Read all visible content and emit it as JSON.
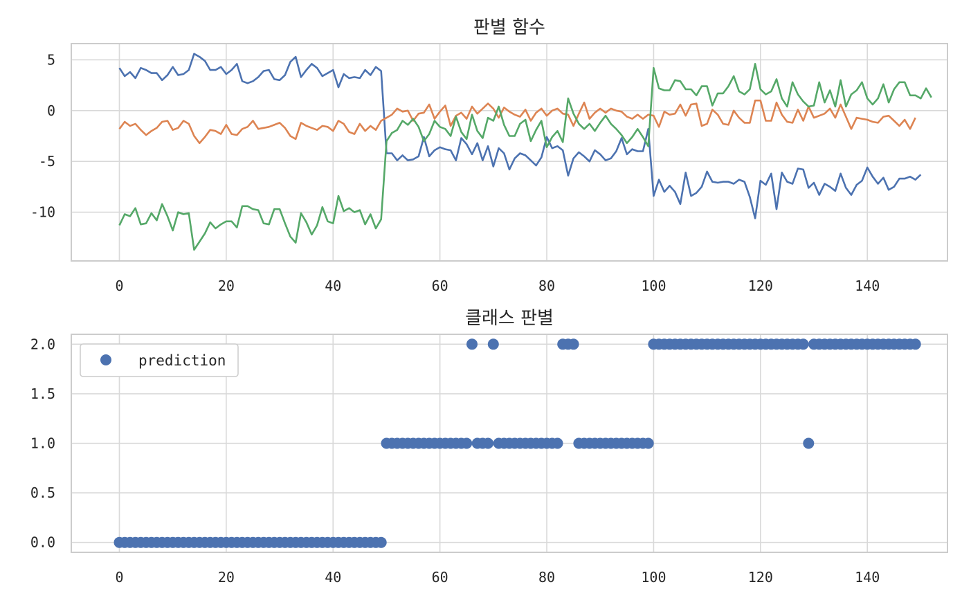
{
  "chart_data": [
    {
      "type": "line",
      "title": "판별 함수",
      "xlim": [
        -9,
        155
      ],
      "ylim": [
        -14.8,
        6.6
      ],
      "xticks": [
        0,
        20,
        40,
        60,
        80,
        100,
        120,
        140
      ],
      "yticks": [
        5,
        0,
        -5,
        -10
      ],
      "grid": true,
      "colors": [
        "#4c72b0",
        "#dd8452",
        "#55a868"
      ],
      "series": [
        {
          "color": "#4c72b0",
          "x_start": 0,
          "values": [
            4.2,
            3.4,
            3.8,
            3.2,
            4.2,
            4.0,
            3.7,
            3.7,
            3.0,
            3.5,
            4.3,
            3.5,
            3.6,
            4.0,
            5.6,
            5.3,
            4.9,
            4.0,
            4.0,
            4.3,
            3.6,
            4.0,
            4.6,
            2.9,
            2.7,
            2.9,
            3.3,
            3.9,
            4.0,
            3.1,
            3.0,
            3.5,
            4.8,
            5.3,
            3.3,
            4.0,
            4.6,
            4.2,
            3.4,
            3.7,
            4.0,
            2.3,
            3.6,
            3.2,
            3.3,
            3.2,
            4.0,
            3.5,
            4.3,
            3.9,
            -4.2,
            -4.2,
            -4.9,
            -4.4,
            -4.9,
            -4.8,
            -4.5,
            -2.6,
            -4.5,
            -3.9,
            -3.6,
            -3.8,
            -3.9,
            -4.9,
            -2.7,
            -3.3,
            -4.3,
            -3.2,
            -4.9,
            -3.5,
            -5.5,
            -3.7,
            -4.2,
            -5.8,
            -4.7,
            -4.2,
            -4.4,
            -4.9,
            -5.4,
            -4.6,
            -2.6,
            -3.7,
            -3.5,
            -3.9,
            -6.4,
            -4.7,
            -4.1,
            -4.5,
            -5.0,
            -3.9,
            -4.3,
            -4.9,
            -4.7,
            -4.0,
            -2.7,
            -4.3,
            -3.8,
            -4.0,
            -4.0,
            -1.8,
            -8.4,
            -6.8,
            -8.0,
            -7.4,
            -8.0,
            -9.2,
            -6.1,
            -8.4,
            -8.1,
            -7.5,
            -6.0,
            -7.0,
            -7.1,
            -7.0,
            -7.0,
            -7.2,
            -6.8,
            -7.0,
            -8.5,
            -10.6,
            -6.9,
            -7.3,
            -6.2,
            -9.7,
            -6.1,
            -7.0,
            -7.2,
            -5.7,
            -5.8,
            -7.6,
            -7.1,
            -8.3,
            -7.2,
            -7.5,
            -7.9,
            -6.2,
            -7.6,
            -8.3,
            -7.3,
            -6.9,
            -5.6,
            -6.5,
            -7.2,
            -6.6,
            -7.8,
            -7.5,
            -6.7,
            -6.7,
            -6.5,
            -6.8,
            -6.3
          ]
        },
        {
          "color": "#dd8452",
          "x_start": 0,
          "values": [
            -1.8,
            -1.1,
            -1.5,
            -1.3,
            -1.9,
            -2.4,
            -2.0,
            -1.7,
            -1.1,
            -1.0,
            -1.9,
            -1.7,
            -1.0,
            -1.3,
            -2.5,
            -3.2,
            -2.6,
            -1.9,
            -2.0,
            -2.3,
            -1.4,
            -2.3,
            -2.4,
            -1.8,
            -1.6,
            -1.0,
            -1.8,
            -1.7,
            -1.6,
            -1.4,
            -1.2,
            -1.7,
            -2.5,
            -2.8,
            -1.2,
            -1.5,
            -1.7,
            -1.9,
            -1.5,
            -1.6,
            -2.0,
            -1.0,
            -1.3,
            -2.1,
            -2.3,
            -1.3,
            -2.0,
            -1.5,
            -1.9,
            -1.0,
            -0.7,
            -0.4,
            0.2,
            -0.1,
            0.0,
            -1.0,
            -0.3,
            -0.2,
            0.6,
            -0.8,
            -0.1,
            0.5,
            -1.5,
            -0.5,
            -0.2,
            -0.8,
            0.4,
            -0.3,
            0.2,
            0.7,
            0.2,
            -0.7,
            0.3,
            -0.1,
            -0.4,
            -0.6,
            0.1,
            -1.0,
            -0.2,
            0.2,
            -0.5,
            0.0,
            0.2,
            -0.3,
            -0.4,
            -1.5,
            -0.3,
            0.8,
            -0.8,
            -0.2,
            0.2,
            -0.2,
            0.2,
            0.0,
            -0.1,
            -0.6,
            -0.8,
            -0.4,
            -0.8,
            -0.4,
            -0.5,
            -1.6,
            -0.1,
            -0.4,
            -0.3,
            0.6,
            -0.5,
            0.6,
            0.7,
            -1.5,
            -1.3,
            0.1,
            -0.4,
            -1.3,
            -1.4,
            0.0,
            -0.7,
            -1.2,
            -1.2,
            1.0,
            1.0,
            -1.0,
            -1.0,
            0.8,
            -0.4,
            -1.1,
            -1.2,
            0.1,
            -1.0,
            0.4,
            -0.7,
            -0.5,
            -0.3,
            0.2,
            -0.7,
            0.6,
            -0.6,
            -1.8,
            -0.7,
            -0.8,
            -0.9,
            -1.1,
            -1.2,
            -0.6,
            -0.5,
            -1.0,
            -1.5,
            -0.9,
            -1.8,
            -0.7
          ]
        },
        {
          "color": "#55a868",
          "x_start": 0,
          "values": [
            -11.3,
            -10.2,
            -10.4,
            -9.6,
            -11.2,
            -11.1,
            -10.1,
            -10.8,
            -9.2,
            -10.4,
            -11.8,
            -10.0,
            -10.2,
            -10.1,
            -13.7,
            -12.9,
            -12.1,
            -11.0,
            -11.6,
            -11.2,
            -10.9,
            -10.9,
            -11.5,
            -9.4,
            -9.4,
            -9.7,
            -9.8,
            -11.1,
            -11.2,
            -9.7,
            -9.7,
            -11.1,
            -12.4,
            -13.0,
            -10.1,
            -11.0,
            -12.2,
            -11.3,
            -9.5,
            -10.9,
            -11.1,
            -8.4,
            -9.9,
            -9.6,
            -10.0,
            -9.8,
            -11.2,
            -10.2,
            -11.6,
            -10.7,
            -3.0,
            -2.2,
            -1.9,
            -1.0,
            -1.4,
            -0.8,
            -1.6,
            -3.0,
            -2.3,
            -1.0,
            -1.6,
            -1.8,
            -2.5,
            -0.6,
            -2.1,
            -2.8,
            -0.4,
            -2.0,
            -2.7,
            -0.7,
            -1.0,
            0.4,
            -1.4,
            -2.5,
            -2.5,
            -1.3,
            -0.9,
            -3.0,
            -1.9,
            -1.0,
            -3.6,
            -2.6,
            -2.0,
            -3.1,
            1.2,
            -0.3,
            -1.3,
            -1.8,
            -1.3,
            -2.0,
            -1.2,
            -0.5,
            -1.3,
            -1.8,
            -2.4,
            -3.2,
            -2.6,
            -1.8,
            -2.6,
            -3.5,
            4.2,
            2.2,
            2.0,
            2.0,
            3.0,
            2.9,
            2.1,
            2.1,
            1.5,
            2.4,
            2.4,
            0.5,
            1.7,
            1.7,
            2.4,
            3.4,
            1.9,
            1.6,
            2.1,
            4.6,
            2.1,
            1.6,
            1.9,
            3.1,
            1.2,
            0.4,
            2.8,
            1.6,
            0.9,
            0.4,
            0.5,
            2.8,
            0.8,
            2.0,
            0.4,
            3.0,
            0.4,
            1.6,
            2.0,
            2.8,
            1.2,
            0.6,
            1.2,
            2.6,
            0.8,
            2.1,
            2.8,
            2.8,
            1.5,
            1.5,
            1.2,
            2.2,
            1.3
          ]
        }
      ]
    },
    {
      "type": "scatter",
      "title": "클래스 판별",
      "xlim": [
        -9,
        155
      ],
      "ylim": [
        -0.1,
        2.1
      ],
      "xticks": [
        0,
        20,
        40,
        60,
        80,
        100,
        120,
        140
      ],
      "yticks": [
        2.0,
        1.5,
        1.0,
        0.5,
        0.0
      ],
      "grid": true,
      "legend": {
        "position": "upper-left",
        "entries": [
          "prediction"
        ]
      },
      "series": [
        {
          "name": "prediction",
          "color": "#4c72b0",
          "x_start": 0,
          "values": [
            0,
            0,
            0,
            0,
            0,
            0,
            0,
            0,
            0,
            0,
            0,
            0,
            0,
            0,
            0,
            0,
            0,
            0,
            0,
            0,
            0,
            0,
            0,
            0,
            0,
            0,
            0,
            0,
            0,
            0,
            0,
            0,
            0,
            0,
            0,
            0,
            0,
            0,
            0,
            0,
            0,
            0,
            0,
            0,
            0,
            0,
            0,
            0,
            0,
            0,
            1,
            1,
            1,
            1,
            1,
            1,
            1,
            1,
            1,
            1,
            1,
            1,
            1,
            1,
            1,
            1,
            2,
            1,
            1,
            1,
            2,
            1,
            1,
            1,
            1,
            1,
            1,
            1,
            1,
            1,
            1,
            1,
            1,
            2,
            2,
            2,
            1,
            1,
            1,
            1,
            1,
            1,
            1,
            1,
            1,
            1,
            1,
            1,
            1,
            1,
            2,
            2,
            2,
            2,
            2,
            2,
            2,
            2,
            2,
            2,
            2,
            2,
            2,
            2,
            2,
            2,
            2,
            2,
            2,
            2,
            2,
            2,
            2,
            2,
            2,
            2,
            2,
            2,
            2,
            1,
            2,
            2,
            2,
            2,
            2,
            2,
            2,
            2,
            2,
            2,
            2,
            2,
            2,
            2,
            2,
            2,
            2,
            2,
            2,
            2
          ]
        }
      ]
    }
  ]
}
